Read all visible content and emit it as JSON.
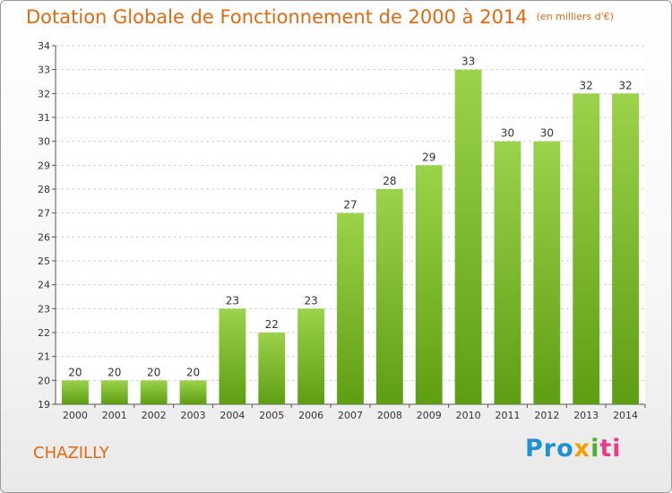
{
  "title": "Dotation Globale de Fonctionnement de 2000 à 2014",
  "subtitle": "(en milliers d'€)",
  "commune": "CHAZILLY",
  "logo": [
    "Pro",
    "x",
    "i",
    "ti"
  ],
  "colors": {
    "accent": "#e06a12",
    "bar_top": "#9bd34a",
    "bar_bottom": "#5e9e12",
    "grid": "#cfcfcf"
  },
  "chart_data": {
    "type": "bar",
    "categories": [
      "2000",
      "2001",
      "2002",
      "2003",
      "2004",
      "2005",
      "2006",
      "2007",
      "2008",
      "2009",
      "2010",
      "2011",
      "2012",
      "2013",
      "2014"
    ],
    "values": [
      20,
      20,
      20,
      20,
      23,
      22,
      23,
      27,
      28,
      29,
      33,
      30,
      30,
      32,
      32
    ],
    "ylim": [
      19,
      34
    ],
    "yticks": [
      19,
      20,
      21,
      22,
      23,
      24,
      25,
      26,
      27,
      28,
      29,
      30,
      31,
      32,
      33,
      34
    ],
    "grid": true,
    "legend": "none"
  }
}
